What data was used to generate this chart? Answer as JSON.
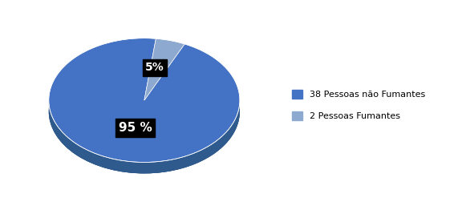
{
  "slices": [
    95,
    5
  ],
  "labels": [
    "38 Pessoas não Fumantes",
    "2 Pessoas Fumantes"
  ],
  "colors_top": [
    "#4472C4",
    "#8DA9D0"
  ],
  "colors_side": [
    "#2E5A8E",
    "#6A8FB5"
  ],
  "pct_labels": [
    "95 %",
    "5%"
  ],
  "bg_color": "#FFFFFF",
  "legend_labels": [
    "38 Pessoas não Fumantes",
    "2 Pessoas Fumantes"
  ],
  "legend_colors": [
    "#4472C4",
    "#8DA9D0"
  ],
  "startangle": 83,
  "depth": 0.18,
  "figsize": [
    5.71,
    2.62
  ],
  "dpi": 100
}
